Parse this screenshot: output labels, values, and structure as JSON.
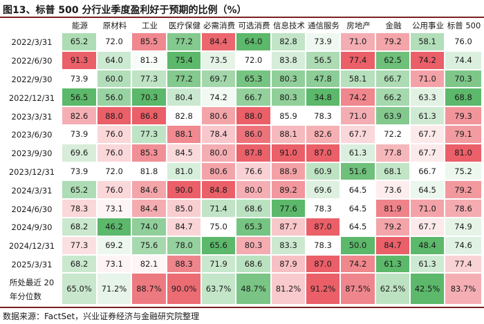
{
  "title": "图13、标普 500 分行业季度盈利好于预期的比例（%）",
  "source": "数据来源：FactSet，兴业证券经济与金融研究院整理",
  "colors": {
    "low": "#5cb86a",
    "mid": "#ffffff",
    "high": "#ea5f68",
    "rule": "#7a1f1f"
  },
  "chart_data": {
    "type": "heatmap",
    "title": "图13、标普 500 分行业季度盈利好于预期的比例（%）",
    "columns": [
      "能源",
      "原材料",
      "工业",
      "医疗保健",
      "必需消费",
      "可选消费",
      "信息技术",
      "通信服务",
      "房地产",
      "金融",
      "公用事业",
      "标普 500"
    ],
    "rows": [
      {
        "label": "2022/3/31",
        "values": [
          "65.2",
          "72.0",
          "85.5",
          "77.2",
          "84.4",
          "64.0",
          "82.8",
          "73.9",
          "71.0",
          "79.2",
          "58.1",
          "76.0"
        ]
      },
      {
        "label": "2022/6/30",
        "values": [
          "91.3",
          "64.0",
          "81.3",
          "75.4",
          "73.5",
          "72.0",
          "83.8",
          "56.5",
          "77.4",
          "62.5",
          "74.2",
          "74.4"
        ]
      },
      {
        "label": "2022/9/30",
        "values": [
          "73.9",
          "60.0",
          "77.3",
          "77.2",
          "69.7",
          "65.3",
          "80.3",
          "47.8",
          "58.1",
          "66.7",
          "71.0",
          "70.3"
        ]
      },
      {
        "label": "2022/12/31",
        "values": [
          "56.5",
          "56.0",
          "70.3",
          "80.4",
          "74.2",
          "66.7",
          "80.3",
          "34.8",
          "74.2",
          "66.2",
          "63.3",
          "68.8"
        ]
      },
      {
        "label": "2023/3/31",
        "values": [
          "82.6",
          "88.0",
          "86.8",
          "82.8",
          "80.6",
          "88.0",
          "85.9",
          "78.3",
          "71.0",
          "63.9",
          "61.3",
          "79.3"
        ]
      },
      {
        "label": "2023/6/30",
        "values": [
          "73.9",
          "76.0",
          "77.3",
          "88.1",
          "78.4",
          "86.0",
          "88.1",
          "82.6",
          "67.7",
          "72.2",
          "67.7",
          "79.1"
        ]
      },
      {
        "label": "2023/9/30",
        "values": [
          "69.6",
          "76.0",
          "85.3",
          "84.5",
          "80.0",
          "87.8",
          "91.0",
          "87.0",
          "61.3",
          "77.8",
          "67.7",
          "81.0"
        ]
      },
      {
        "label": "2023/12/31",
        "values": [
          "73.9",
          "72.0",
          "81.8",
          "81.0",
          "80.6",
          "76.6",
          "88.9",
          "60.9",
          "51.6",
          "68.1",
          "66.7",
          "75.2"
        ]
      },
      {
        "label": "2024/3/31",
        "values": [
          "65.2",
          "76.0",
          "84.6",
          "90.0",
          "84.8",
          "80.0",
          "89.2",
          "69.6",
          "64.5",
          "73.6",
          "64.5",
          "79.2"
        ]
      },
      {
        "label": "2024/6/30",
        "values": [
          "78.3",
          "73.1",
          "84.4",
          "85.0",
          "71.4",
          "68.6",
          "77.6",
          "78.3",
          "64.5",
          "81.9",
          "71.0",
          "78.6"
        ]
      },
      {
        "label": "2024/9/30",
        "values": [
          "68.2",
          "46.2",
          "74.0",
          "84.7",
          "75.0",
          "65.3",
          "87.7",
          "87.0",
          "64.5",
          "79.2",
          "67.7",
          "74.9"
        ]
      },
      {
        "label": "2024/12/31",
        "values": [
          "77.3",
          "69.2",
          "75.6",
          "78.0",
          "65.6",
          "80.3",
          "83.3",
          "78.3",
          "50.0",
          "84.7",
          "48.4",
          "74.6"
        ]
      },
      {
        "label": "2025/3/31",
        "values": [
          "68.2",
          "73.1",
          "82.1",
          "88.3",
          "71.9",
          "68.6",
          "87.9",
          "87.0",
          "74.2",
          "61.3",
          "61.3",
          "77.4"
        ]
      }
    ],
    "percentile_row": {
      "label_line1": "所处最近 20",
      "label_line2": "年分位数",
      "values": [
        "65.0%",
        "71.2%",
        "88.7%",
        "90.0%",
        "63.7%",
        "48.7%",
        "81.2%",
        "91.2%",
        "87.5%",
        "62.5%",
        "42.5%",
        "83.7%"
      ]
    }
  }
}
